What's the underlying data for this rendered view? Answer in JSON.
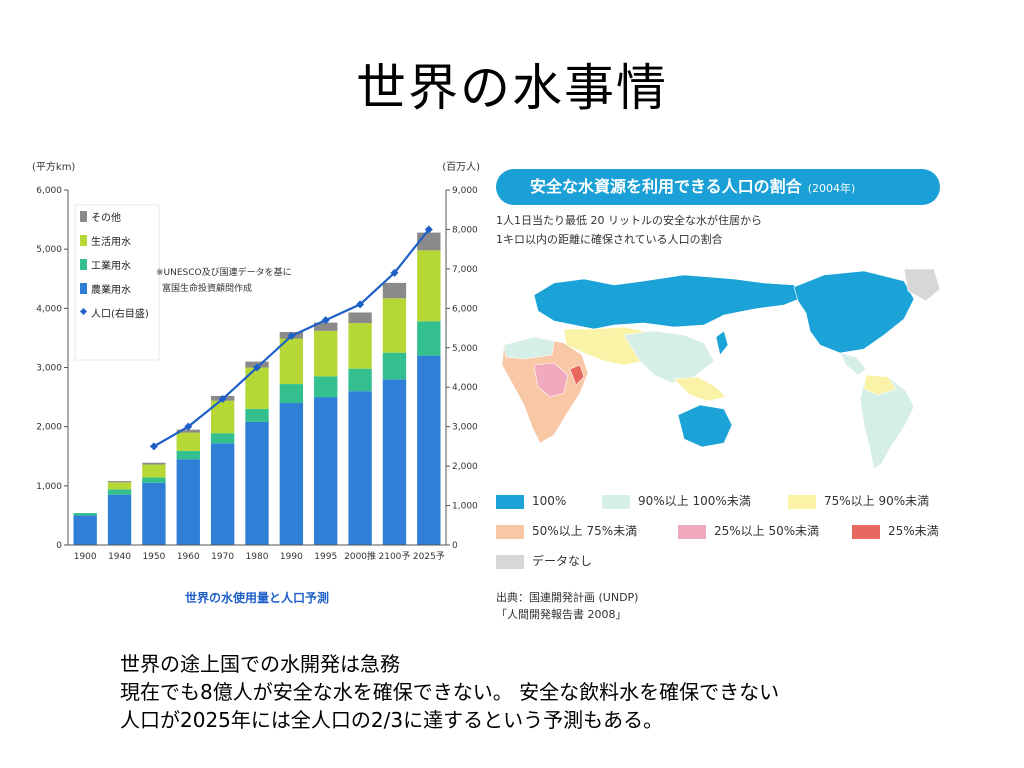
{
  "slide": {
    "title": "世界の水事情",
    "body_lines": [
      "世界の途上国での水開発は急務",
      "現在でも8億人が安全な水を確保できない。 安全な飲料水を確保できない",
      "人口が2025年には全人口の2/3に達するという予測もある。"
    ]
  },
  "chart_data": [
    {
      "type": "bar",
      "title": "世界の水使用量と人口予測",
      "categories": [
        "1900",
        "1940",
        "1950",
        "1960",
        "1970",
        "1980",
        "1990",
        "1995",
        "2000推",
        "2100予",
        "2025予"
      ],
      "ylabel_left": "(平方km)",
      "ylabel_right": "(百万人)",
      "ylim_left": [
        0,
        6000
      ],
      "ylim_right": [
        0,
        9000
      ],
      "yticks_left": [
        "0",
        "1,000",
        "2,000",
        "3,000",
        "4,000",
        "5,000",
        "6,000"
      ],
      "yticks_right": [
        "0",
        "1,000",
        "2,000",
        "3,000",
        "4,000",
        "5,000",
        "6,000",
        "7,000",
        "8,000",
        "9,000"
      ],
      "note": "※UNESCO及び国連データを基に 富国生命投資顧問作成",
      "series": [
        {
          "name": "農業用水",
          "color": "#2f7fd6",
          "values": [
            500,
            850,
            1050,
            1450,
            1720,
            2080,
            2400,
            2500,
            2600,
            2800,
            3200
          ]
        },
        {
          "name": "工業用水",
          "color": "#33c08e",
          "values": [
            40,
            90,
            90,
            140,
            170,
            220,
            320,
            350,
            380,
            450,
            580
          ]
        },
        {
          "name": "生活用水",
          "color": "#b5d836",
          "values": [
            0,
            120,
            220,
            310,
            550,
            700,
            770,
            770,
            770,
            920,
            1200
          ]
        },
        {
          "name": "その他",
          "color": "#8a8a8a",
          "values": [
            0,
            20,
            30,
            50,
            80,
            100,
            110,
            140,
            180,
            260,
            300
          ]
        }
      ],
      "line": {
        "name": "人口(右目盛)",
        "color": "#1f5fc8",
        "x_categories": [
          "1950",
          "1960",
          "1970",
          "1980",
          "1990",
          "1995",
          "2000推",
          "2100予",
          "2025予"
        ],
        "values": [
          2500,
          3000,
          3700,
          4500,
          5300,
          5700,
          6100,
          6900,
          8000
        ]
      }
    }
  ],
  "map": {
    "banner_title": "安全な水資源を利用できる人口の割合",
    "banner_year": "(2004年)",
    "subtitle_lines": [
      "1人1日当たり最低 20 リットルの安全な水が住居から",
      "1キロ以内の距離に確保されている人口の割合"
    ],
    "legend": [
      {
        "label": "100%",
        "color": "#1ba3d8"
      },
      {
        "label": "90%以上 100%未満",
        "color": "#d6eee8"
      },
      {
        "label": "75%以上 90%未満",
        "color": "#faf2a6"
      },
      {
        "label": "50%以上 75%未満",
        "color": "#f7c7a6"
      },
      {
        "label": "25%以上 50%未満",
        "color": "#f0a9bd"
      },
      {
        "label": "25%未満",
        "color": "#e8685f"
      },
      {
        "label": "データなし",
        "color": "#d7d7d7"
      }
    ],
    "source_lines": [
      "出典：国連開発計画 (UNDP)",
      "「人間開発報告書 2008」"
    ]
  }
}
